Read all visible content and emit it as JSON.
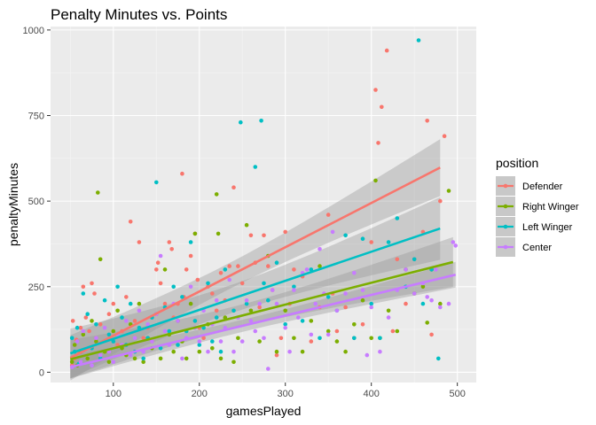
{
  "chart_data": {
    "type": "scatter",
    "title": "Penalty Minutes vs. Points",
    "xlabel": "gamesPlayed",
    "ylabel": "penaltyMinutes",
    "xlim": [
      27,
      522
    ],
    "ylim": [
      -30,
      1010
    ],
    "x_ticks": [
      100,
      200,
      300,
      400,
      500
    ],
    "y_ticks": [
      0,
      250,
      500,
      750,
      1000
    ],
    "grid": true,
    "legend": {
      "title": "position",
      "placement": "right"
    },
    "series": [
      {
        "name": "Defender",
        "color": "#F8766D",
        "points": [
          [
            52,
            20
          ],
          [
            53,
            150
          ],
          [
            55,
            40
          ],
          [
            57,
            95
          ],
          [
            60,
            60
          ],
          [
            62,
            130
          ],
          [
            65,
            250
          ],
          [
            68,
            160
          ],
          [
            70,
            70
          ],
          [
            72,
            120
          ],
          [
            75,
            260
          ],
          [
            78,
            230
          ],
          [
            80,
            100
          ],
          [
            85,
            140
          ],
          [
            90,
            60
          ],
          [
            95,
            170
          ],
          [
            100,
            200
          ],
          [
            105,
            80
          ],
          [
            110,
            120
          ],
          [
            115,
            220
          ],
          [
            120,
            440
          ],
          [
            125,
            150
          ],
          [
            130,
            380
          ],
          [
            135,
            100
          ],
          [
            140,
            130
          ],
          [
            145,
            90
          ],
          [
            150,
            300
          ],
          [
            152,
            320
          ],
          [
            155,
            260
          ],
          [
            160,
            200
          ],
          [
            165,
            380
          ],
          [
            168,
            360
          ],
          [
            170,
            160
          ],
          [
            175,
            200
          ],
          [
            180,
            580
          ],
          [
            182,
            220
          ],
          [
            185,
            300
          ],
          [
            190,
            340
          ],
          [
            195,
            405
          ],
          [
            198,
            270
          ],
          [
            200,
            130
          ],
          [
            205,
            100
          ],
          [
            210,
            250
          ],
          [
            215,
            230
          ],
          [
            220,
            180
          ],
          [
            225,
            290
          ],
          [
            230,
            210
          ],
          [
            235,
            310
          ],
          [
            240,
            540
          ],
          [
            245,
            310
          ],
          [
            250,
            260
          ],
          [
            260,
            400
          ],
          [
            265,
            320
          ],
          [
            270,
            190
          ],
          [
            275,
            400
          ],
          [
            280,
            310
          ],
          [
            285,
            240
          ],
          [
            290,
            50
          ],
          [
            295,
            100
          ],
          [
            300,
            410
          ],
          [
            305,
            200
          ],
          [
            310,
            300
          ],
          [
            320,
            280
          ],
          [
            330,
            90
          ],
          [
            340,
            190
          ],
          [
            350,
            460
          ],
          [
            355,
            230
          ],
          [
            360,
            120
          ],
          [
            370,
            190
          ],
          [
            380,
            100
          ],
          [
            390,
            140
          ],
          [
            400,
            380
          ],
          [
            405,
            825
          ],
          [
            408,
            670
          ],
          [
            412,
            775
          ],
          [
            418,
            940
          ],
          [
            425,
            120
          ],
          [
            430,
            330
          ],
          [
            440,
            200
          ],
          [
            450,
            330
          ],
          [
            460,
            410
          ],
          [
            465,
            735
          ],
          [
            470,
            110
          ],
          [
            480,
            500
          ],
          [
            485,
            690
          ]
        ],
        "fit": {
          "x0": 50,
          "y0": 42,
          "x1": 480,
          "y1": 598
        }
      },
      {
        "name": "Right Winger",
        "color": "#7CAE00",
        "points": [
          [
            52,
            30
          ],
          [
            55,
            80
          ],
          [
            58,
            20
          ],
          [
            62,
            60
          ],
          [
            65,
            110
          ],
          [
            70,
            40
          ],
          [
            75,
            150
          ],
          [
            80,
            90
          ],
          [
            82,
            525
          ],
          [
            85,
            330
          ],
          [
            90,
            60
          ],
          [
            95,
            30
          ],
          [
            100,
            120
          ],
          [
            105,
            180
          ],
          [
            110,
            70
          ],
          [
            115,
            50
          ],
          [
            120,
            140
          ],
          [
            125,
            40
          ],
          [
            130,
            200
          ],
          [
            135,
            30
          ],
          [
            140,
            100
          ],
          [
            145,
            70
          ],
          [
            150,
            170
          ],
          [
            155,
            40
          ],
          [
            160,
            300
          ],
          [
            165,
            110
          ],
          [
            170,
            60
          ],
          [
            175,
            150
          ],
          [
            180,
            90
          ],
          [
            185,
            40
          ],
          [
            190,
            200
          ],
          [
            195,
            405
          ],
          [
            200,
            60
          ],
          [
            210,
            140
          ],
          [
            215,
            70
          ],
          [
            220,
            520
          ],
          [
            222,
            405
          ],
          [
            225,
            40
          ],
          [
            230,
            160
          ],
          [
            240,
            30
          ],
          [
            245,
            100
          ],
          [
            255,
            430
          ],
          [
            260,
            180
          ],
          [
            270,
            90
          ],
          [
            280,
            340
          ],
          [
            290,
            60
          ],
          [
            300,
            180
          ],
          [
            310,
            100
          ],
          [
            320,
            60
          ],
          [
            330,
            150
          ],
          [
            340,
            310
          ],
          [
            350,
            120
          ],
          [
            360,
            90
          ],
          [
            370,
            60
          ],
          [
            380,
            140
          ],
          [
            390,
            210
          ],
          [
            400,
            100
          ],
          [
            405,
            560
          ],
          [
            410,
            100
          ],
          [
            420,
            180
          ],
          [
            430,
            120
          ],
          [
            440,
            300
          ],
          [
            450,
            230
          ],
          [
            460,
            250
          ],
          [
            465,
            145
          ],
          [
            470,
            300
          ],
          [
            480,
            200
          ],
          [
            490,
            530
          ]
        ],
        "fit": {
          "x0": 50,
          "y0": 38,
          "x1": 495,
          "y1": 322
        }
      },
      {
        "name": "Left Winger",
        "color": "#00BFC4",
        "points": [
          [
            52,
            100
          ],
          [
            55,
            60
          ],
          [
            58,
            130
          ],
          [
            60,
            25
          ],
          [
            65,
            230
          ],
          [
            70,
            170
          ],
          [
            75,
            70
          ],
          [
            80,
            140
          ],
          [
            85,
            40
          ],
          [
            90,
            210
          ],
          [
            95,
            110
          ],
          [
            100,
            90
          ],
          [
            105,
            250
          ],
          [
            110,
            160
          ],
          [
            115,
            80
          ],
          [
            120,
            200
          ],
          [
            125,
            60
          ],
          [
            130,
            130
          ],
          [
            135,
            40
          ],
          [
            140,
            100
          ],
          [
            145,
            160
          ],
          [
            150,
            555
          ],
          [
            155,
            70
          ],
          [
            160,
            190
          ],
          [
            165,
            120
          ],
          [
            170,
            250
          ],
          [
            175,
            80
          ],
          [
            180,
            220
          ],
          [
            185,
            120
          ],
          [
            190,
            380
          ],
          [
            195,
            150
          ],
          [
            200,
            80
          ],
          [
            205,
            130
          ],
          [
            210,
            260
          ],
          [
            215,
            90
          ],
          [
            220,
            160
          ],
          [
            225,
            60
          ],
          [
            230,
            300
          ],
          [
            240,
            180
          ],
          [
            248,
            730
          ],
          [
            255,
            200
          ],
          [
            265,
            600
          ],
          [
            272,
            735
          ],
          [
            275,
            260
          ],
          [
            280,
            210
          ],
          [
            290,
            320
          ],
          [
            300,
            140
          ],
          [
            310,
            250
          ],
          [
            320,
            150
          ],
          [
            330,
            300
          ],
          [
            340,
            100
          ],
          [
            350,
            220
          ],
          [
            360,
            180
          ],
          [
            370,
            400
          ],
          [
            380,
            100
          ],
          [
            390,
            390
          ],
          [
            400,
            200
          ],
          [
            410,
            100
          ],
          [
            420,
            380
          ],
          [
            430,
            450
          ],
          [
            440,
            250
          ],
          [
            450,
            330
          ],
          [
            455,
            970
          ],
          [
            460,
            200
          ],
          [
            470,
            300
          ],
          [
            478,
            40
          ]
        ],
        "fit": {
          "x0": 50,
          "y0": 55,
          "x1": 480,
          "y1": 420
        }
      },
      {
        "name": "Center",
        "color": "#C77CFF",
        "points": [
          [
            52,
            15
          ],
          [
            55,
            45
          ],
          [
            58,
            90
          ],
          [
            62,
            30
          ],
          [
            65,
            120
          ],
          [
            70,
            70
          ],
          [
            75,
            20
          ],
          [
            80,
            100
          ],
          [
            85,
            50
          ],
          [
            90,
            130
          ],
          [
            95,
            60
          ],
          [
            100,
            30
          ],
          [
            105,
            110
          ],
          [
            110,
            80
          ],
          [
            115,
            150
          ],
          [
            120,
            50
          ],
          [
            125,
            100
          ],
          [
            130,
            180
          ],
          [
            135,
            60
          ],
          [
            140,
            140
          ],
          [
            145,
            90
          ],
          [
            150,
            170
          ],
          [
            155,
            340
          ],
          [
            160,
            120
          ],
          [
            165,
            80
          ],
          [
            170,
            200
          ],
          [
            175,
            150
          ],
          [
            180,
            40
          ],
          [
            185,
            100
          ],
          [
            190,
            250
          ],
          [
            195,
            130
          ],
          [
            200,
            90
          ],
          [
            205,
            180
          ],
          [
            210,
            60
          ],
          [
            215,
            140
          ],
          [
            220,
            210
          ],
          [
            225,
            90
          ],
          [
            230,
            130
          ],
          [
            235,
            270
          ],
          [
            240,
            60
          ],
          [
            245,
            160
          ],
          [
            250,
            90
          ],
          [
            255,
            210
          ],
          [
            260,
            150
          ],
          [
            265,
            120
          ],
          [
            270,
            200
          ],
          [
            275,
            100
          ],
          [
            280,
            10
          ],
          [
            285,
            240
          ],
          [
            290,
            200
          ],
          [
            300,
            130
          ],
          [
            305,
            60
          ],
          [
            310,
            240
          ],
          [
            315,
            160
          ],
          [
            320,
            290
          ],
          [
            325,
            300
          ],
          [
            330,
            110
          ],
          [
            335,
            200
          ],
          [
            340,
            360
          ],
          [
            345,
            230
          ],
          [
            350,
            110
          ],
          [
            355,
            410
          ],
          [
            360,
            180
          ],
          [
            370,
            230
          ],
          [
            380,
            290
          ],
          [
            390,
            240
          ],
          [
            395,
            50
          ],
          [
            400,
            190
          ],
          [
            410,
            60
          ],
          [
            420,
            160
          ],
          [
            430,
            240
          ],
          [
            440,
            300
          ],
          [
            450,
            230
          ],
          [
            460,
            260
          ],
          [
            465,
            220
          ],
          [
            470,
            210
          ],
          [
            475,
            300
          ],
          [
            480,
            190
          ],
          [
            490,
            200
          ],
          [
            495,
            380
          ],
          [
            498,
            370
          ]
        ],
        "fit": {
          "x0": 50,
          "y0": 15,
          "x1": 498,
          "y1": 285
        }
      }
    ]
  }
}
